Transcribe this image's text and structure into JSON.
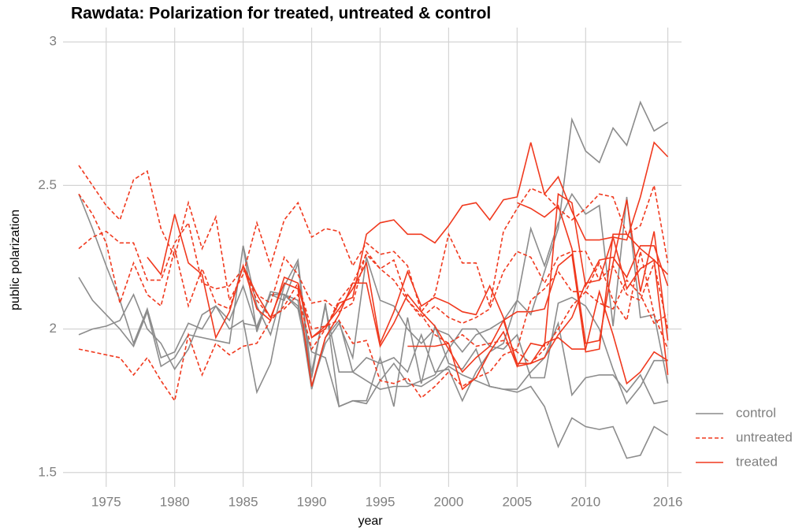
{
  "chart_data": {
    "type": "line",
    "title": "Rawdata: Polarization for treated, untreated & control",
    "x_label": "year",
    "y_label": "public polarization",
    "x": [
      1973,
      1974,
      1975,
      1976,
      1977,
      1978,
      1979,
      1980,
      1981,
      1982,
      1983,
      1984,
      1985,
      1986,
      1987,
      1988,
      1989,
      1990,
      1991,
      1992,
      1993,
      1994,
      1995,
      1996,
      1997,
      1998,
      1999,
      2000,
      2001,
      2002,
      2003,
      2004,
      2005,
      2006,
      2007,
      2008,
      2009,
      2010,
      2011,
      2012,
      2013,
      2014,
      2015,
      2016
    ],
    "xlim": [
      1971.85,
      2017
    ],
    "xticks": [
      1975,
      1980,
      1985,
      1990,
      1995,
      2000,
      2005,
      2010,
      2016
    ],
    "ylim": [
      1.45,
      3.05
    ],
    "yticks": [
      1.5,
      2,
      2.5,
      3
    ],
    "grid": true,
    "legend": "right",
    "series": [
      {
        "name": "control",
        "color": "#8c8c8c",
        "dashed": false,
        "lines": [
          [
            2.47,
            2.35,
            2.22,
            2.1,
            1.95,
            2.07,
            1.9,
            1.92,
            2.02,
            2.0,
            2.08,
            2.03,
            2.15,
            2.0,
            2.12,
            2.1,
            2.23,
            1.8,
            1.95,
            2.02,
            1.9,
            2.25,
            2.1,
            2.08,
            2.0,
            1.95,
            2.0,
            1.98,
            1.92,
            1.98,
            2.0,
            2.03,
            2.1,
            2.05,
            2.2,
            2.35,
            2.73,
            2.62,
            2.58,
            2.7,
            2.64,
            2.79,
            2.69,
            2.72
          ],
          [
            1.98,
            2.0,
            2.01,
            2.03,
            2.12,
            2.0,
            1.95,
            1.86,
            1.93,
            2.05,
            2.08,
            2.0,
            2.03,
            1.78,
            1.88,
            2.12,
            2.08,
            1.92,
            1.9,
            1.73,
            1.75,
            1.74,
            1.82,
            1.88,
            1.81,
            1.8,
            1.83,
            1.87,
            1.84,
            1.82,
            1.8,
            1.79,
            1.78,
            1.8,
            1.73,
            1.59,
            1.69,
            1.66,
            1.65,
            1.66,
            1.55,
            1.56,
            1.66,
            1.63
          ],
          [
            2.18,
            2.1,
            2.05,
            2.0,
            1.94,
            2.06,
            1.87,
            1.9,
            1.98,
            1.97,
            1.96,
            1.95,
            2.29,
            1.99,
            2.13,
            2.12,
            2.07,
            1.85,
            2.08,
            1.85,
            1.85,
            1.9,
            1.88,
            1.9,
            1.85,
            1.98,
            1.85,
            1.86,
            1.75,
            1.85,
            1.92,
            1.95,
            2.1,
            2.35,
            2.22,
            2.37,
            2.47,
            2.4,
            2.43,
            2.01,
            2.46,
            2.04,
            2.05,
            1.81
          ],
          [
            null,
            null,
            null,
            null,
            null,
            null,
            null,
            null,
            null,
            null,
            null,
            null,
            2.02,
            2.01,
            2.12,
            2.12,
            2.1,
            1.79,
            1.97,
            2.03,
            1.85,
            1.82,
            1.79,
            1.8,
            1.8,
            1.82,
            1.84,
            1.93,
            2.0,
            2.0,
            1.94,
            1.93,
            1.98,
            1.83,
            1.83,
            2.09,
            2.11,
            2.08,
            2.0,
            1.86,
            1.74,
            1.8,
            1.89,
            1.89
          ],
          [
            null,
            null,
            null,
            null,
            null,
            null,
            null,
            null,
            null,
            null,
            null,
            null,
            2.29,
            2.08,
            1.98,
            2.15,
            2.24,
            1.83,
            2.09,
            1.73,
            1.75,
            1.75,
            1.9,
            1.73,
            2.04,
            1.81,
            2.01,
            1.88,
            1.86,
            1.93,
            1.8,
            1.79,
            1.79,
            1.85,
            1.9,
            2.02,
            1.77,
            1.83,
            1.84,
            1.84,
            1.78,
            1.84,
            1.74,
            1.75
          ]
        ]
      },
      {
        "name": "untreated",
        "color": "#f0391e",
        "dashed": true,
        "lines": [
          [
            2.57,
            2.5,
            2.43,
            2.38,
            2.52,
            2.55,
            2.35,
            2.25,
            2.44,
            2.28,
            2.39,
            2.1,
            2.19,
            2.37,
            2.22,
            2.38,
            2.44,
            2.32,
            2.35,
            2.34,
            2.22,
            2.3,
            2.26,
            2.27,
            2.22,
            2.06,
            2.12,
            2.33,
            2.23,
            2.23,
            2.08,
            2.34,
            2.42,
            2.49,
            2.47,
            2.42,
            2.38,
            2.42,
            2.47,
            2.46,
            2.33,
            2.36,
            2.5,
            2.23
          ],
          [
            2.28,
            2.32,
            2.34,
            2.3,
            2.3,
            2.17,
            2.17,
            2.3,
            2.37,
            2.16,
            2.14,
            2.15,
            2.21,
            2.12,
            2.09,
            2.25,
            2.19,
            2.09,
            2.1,
            2.06,
            2.09,
            2.27,
            2.21,
            2.17,
            2.1,
            2.04,
            2.08,
            2.04,
            2.02,
            2.04,
            2.07,
            2.2,
            2.27,
            2.25,
            2.16,
            2.25,
            2.27,
            2.27,
            2.17,
            2.22,
            2.12,
            2.1,
            2.23,
            2.0
          ],
          [
            1.93,
            1.92,
            1.91,
            1.9,
            1.84,
            1.9,
            1.82,
            1.75,
            1.98,
            1.84,
            1.95,
            1.91,
            1.94,
            1.95,
            2.03,
            2.08,
            2.16,
            2.0,
            2.01,
            2.03,
            1.95,
            1.96,
            1.82,
            1.81,
            1.83,
            1.76,
            1.8,
            1.85,
            1.8,
            1.83,
            1.85,
            1.91,
            1.93,
            2.1,
            2.14,
            2.2,
            2.13,
            2.13,
            2.09,
            2.07,
            2.17,
            2.12,
            2.02,
            2.05
          ],
          [
            2.47,
            2.4,
            2.3,
            2.09,
            2.23,
            2.12,
            2.08,
            2.28,
            2.08,
            2.21,
            2.09,
            2.07,
            2.22,
            2.1,
            2.04,
            2.07,
            2.12,
            1.93,
            2.0,
            2.1,
            2.16,
            2.26,
            2.21,
            2.24,
            2.1,
            2.05,
            1.98,
            1.95,
            1.98,
            1.94,
            1.95,
            1.96,
            1.92,
            1.88,
            1.93,
            2.0,
            2.08,
            2.13,
            2.23,
            2.1,
            2.03,
            2.27,
            2.05,
            1.93
          ]
        ]
      },
      {
        "name": "treated",
        "color": "#f0391e",
        "dashed": false,
        "lines": [
          [
            null,
            null,
            null,
            null,
            null,
            2.25,
            2.19,
            2.4,
            2.23,
            2.19,
            1.97,
            2.06,
            2.22,
            2.07,
            2.03,
            2.18,
            2.16,
            1.97,
            2.0,
            2.09,
            2.11,
            2.33,
            2.37,
            2.38,
            2.33,
            2.33,
            2.3,
            2.36,
            2.43,
            2.44,
            2.38,
            2.45,
            2.46,
            2.65,
            2.47,
            2.53,
            2.41,
            2.31,
            2.31,
            2.32,
            2.31,
            2.46,
            2.65,
            2.6
          ],
          [
            null,
            null,
            null,
            null,
            null,
            null,
            null,
            null,
            null,
            null,
            null,
            null,
            2.22,
            2.12,
            2.04,
            2.16,
            2.14,
            1.8,
            1.97,
            2.05,
            2.16,
            2.16,
            1.94,
            2.02,
            2.12,
            2.06,
            2.01,
            1.93,
            1.85,
            1.9,
            1.94,
            2.03,
            2.06,
            2.06,
            2.07,
            2.22,
            2.26,
            1.92,
            1.93,
            2.33,
            2.33,
            2.28,
            2.24,
            2.19
          ],
          [
            null,
            null,
            null,
            null,
            null,
            null,
            null,
            null,
            null,
            null,
            null,
            null,
            null,
            null,
            null,
            null,
            2.15,
            1.97,
            2.01,
            2.07,
            2.14,
            2.23,
            1.95,
            2.06,
            2.2,
            2.08,
            2.11,
            2.09,
            2.06,
            2.05,
            2.15,
            2.04,
            1.87,
            1.95,
            1.94,
            2.47,
            2.44,
            2.15,
            2.24,
            2.25,
            2.18,
            2.29,
            2.29,
            2.15
          ],
          [
            null,
            null,
            null,
            null,
            null,
            null,
            null,
            null,
            null,
            null,
            null,
            null,
            null,
            null,
            null,
            null,
            null,
            null,
            null,
            null,
            null,
            null,
            null,
            null,
            1.94,
            1.94,
            1.94,
            1.95,
            1.79,
            1.83,
            1.92,
            1.99,
            1.87,
            1.88,
            1.95,
            1.97,
            1.93,
            1.93,
            2.13,
            1.98,
            1.81,
            1.85,
            1.92,
            1.89
          ],
          [
            null,
            null,
            null,
            null,
            null,
            null,
            null,
            null,
            null,
            null,
            null,
            null,
            null,
            null,
            null,
            null,
            null,
            null,
            null,
            null,
            null,
            null,
            null,
            null,
            null,
            null,
            null,
            null,
            null,
            null,
            null,
            2.03,
            1.88,
            1.88,
            1.9,
            1.98,
            2.04,
            2.16,
            2.17,
            2.32,
            2.14,
            2.21,
            2.24,
            1.84
          ],
          [
            null,
            null,
            null,
            null,
            null,
            null,
            null,
            null,
            null,
            null,
            null,
            null,
            null,
            null,
            null,
            null,
            null,
            null,
            null,
            null,
            null,
            null,
            null,
            null,
            null,
            null,
            null,
            null,
            null,
            null,
            null,
            null,
            2.44,
            2.42,
            2.39,
            2.43,
            2.28,
            1.95,
            1.96,
            2.23,
            2.45,
            2.13,
            2.34,
            1.96
          ]
        ]
      }
    ]
  }
}
